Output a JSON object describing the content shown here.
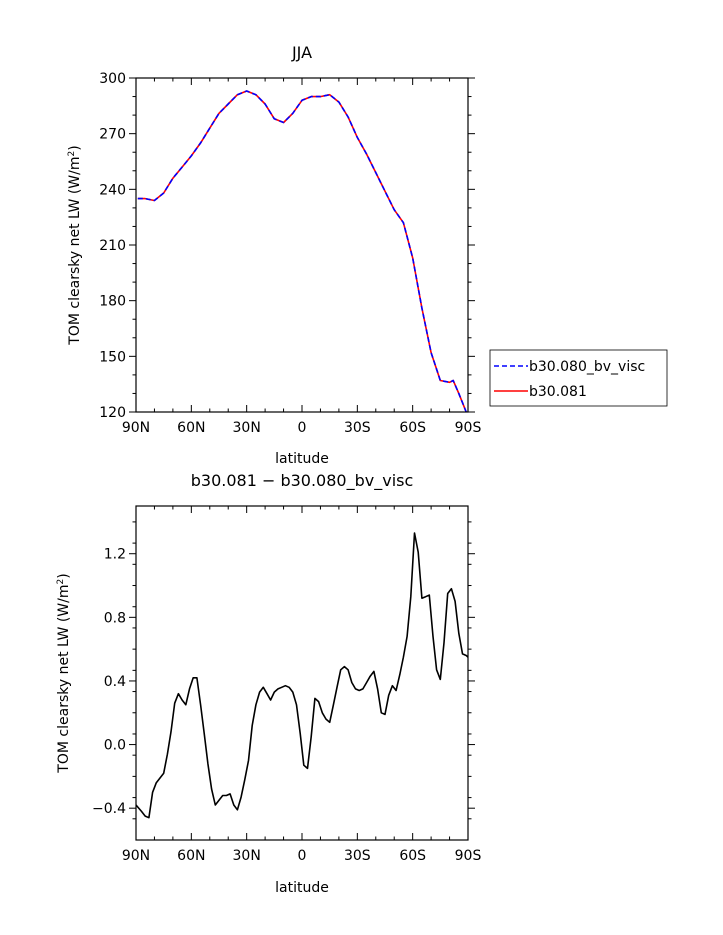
{
  "chart_data": [
    {
      "type": "line",
      "title": "JJA",
      "xlabel": "latitude",
      "ylabel": "TOM clearsky net LW (W/m²)",
      "ylabel_main": "TOM clearsky net LW (W/m",
      "ylabel_sup": "2",
      "ylabel_end": ")",
      "xlim": [
        -90,
        90
      ],
      "ylim": [
        120,
        300
      ],
      "x_ticks": [
        -90,
        -60,
        -30,
        0,
        30,
        60,
        90
      ],
      "x_tick_labels": [
        "90N",
        "60N",
        "30N",
        "0",
        "30S",
        "60S",
        "90S"
      ],
      "y_ticks": [
        120,
        150,
        180,
        210,
        240,
        270,
        300
      ],
      "y_tick_labels": [
        "120",
        "150",
        "180",
        "210",
        "240",
        "270",
        "300"
      ],
      "legend": {
        "placement": "right"
      },
      "series": [
        {
          "name": "b30.080_bv_visc",
          "color": "#0000ff",
          "dash": "dashed",
          "x": [
            -89,
            -85,
            -80,
            -75,
            -70,
            -65,
            -60,
            -55,
            -50,
            -45,
            -40,
            -35,
            -30,
            -25,
            -20,
            -15,
            -10,
            -5,
            0,
            5,
            10,
            15,
            20,
            25,
            30,
            35,
            40,
            45,
            50,
            55,
            60,
            65,
            70,
            75,
            80,
            82,
            85,
            89
          ],
          "y": [
            235,
            235,
            234,
            238,
            246,
            252,
            258,
            265,
            273,
            281,
            286,
            291,
            293,
            291,
            286,
            278,
            276,
            281,
            288,
            290,
            290,
            291,
            287,
            279,
            268,
            259,
            249,
            239,
            229,
            222,
            203,
            176,
            152,
            137,
            136,
            137,
            130,
            120
          ]
        },
        {
          "name": "b30.081",
          "color": "#ff0000",
          "dash": "solid",
          "x": [
            -89,
            -85,
            -80,
            -75,
            -70,
            -65,
            -60,
            -55,
            -50,
            -45,
            -40,
            -35,
            -30,
            -25,
            -20,
            -15,
            -10,
            -5,
            0,
            5,
            10,
            15,
            20,
            25,
            30,
            35,
            40,
            45,
            50,
            55,
            60,
            65,
            70,
            75,
            80,
            82,
            85,
            89
          ],
          "y": [
            235,
            235,
            234,
            238,
            246,
            252,
            258,
            265,
            273,
            281,
            286,
            291,
            293,
            291,
            286,
            278,
            276,
            281,
            288,
            290,
            290,
            291,
            287,
            279,
            268,
            259,
            249,
            239,
            229,
            222,
            203,
            176,
            152,
            137,
            136,
            137,
            130,
            120
          ]
        }
      ]
    },
    {
      "type": "line",
      "title": "b30.081 − b30.080_bv_visc",
      "xlabel": "latitude",
      "ylabel": "TOM clearsky net LW (W/m²)",
      "ylabel_main": "TOM clearsky net LW (W/m",
      "ylabel_sup": "2",
      "ylabel_end": ")",
      "xlim": [
        -90,
        90
      ],
      "ylim": [
        -0.6,
        1.5
      ],
      "x_ticks": [
        -90,
        -60,
        -30,
        0,
        30,
        60,
        90
      ],
      "x_tick_labels": [
        "90N",
        "60N",
        "30N",
        "0",
        "30S",
        "60S",
        "90S"
      ],
      "y_ticks": [
        -0.4,
        0.0,
        0.4,
        0.8,
        1.2
      ],
      "y_tick_labels": [
        "−0.4",
        "0.0",
        "0.4",
        "0.8",
        "1.2"
      ],
      "series": [
        {
          "name": "b30.081 − b30.080_bv_visc",
          "color": "#000000",
          "dash": "solid",
          "x": [
            -90,
            -87,
            -85,
            -83,
            -81,
            -79,
            -77,
            -75,
            -73,
            -71,
            -69,
            -67,
            -65,
            -63,
            -61,
            -59,
            -57,
            -55,
            -53,
            -51,
            -49,
            -47,
            -45,
            -43,
            -41,
            -39,
            -37,
            -35,
            -33,
            -31,
            -29,
            -27,
            -25,
            -23,
            -21,
            -19,
            -17,
            -15,
            -13,
            -11,
            -9,
            -7,
            -5,
            -3,
            -1,
            1,
            3,
            5,
            7,
            9,
            11,
            13,
            15,
            17,
            19,
            21,
            23,
            25,
            27,
            29,
            31,
            33,
            35,
            37,
            39,
            41,
            43,
            45,
            47,
            49,
            51,
            53,
            55,
            57,
            59,
            61,
            63,
            65,
            67,
            69,
            71,
            73,
            75,
            77,
            79,
            81,
            83,
            85,
            87,
            89,
            90
          ],
          "y": [
            -0.38,
            -0.42,
            -0.45,
            -0.46,
            -0.3,
            -0.24,
            -0.21,
            -0.18,
            -0.06,
            0.08,
            0.26,
            0.32,
            0.28,
            0.25,
            0.35,
            0.42,
            0.42,
            0.25,
            0.07,
            -0.12,
            -0.28,
            -0.38,
            -0.35,
            -0.32,
            -0.32,
            -0.31,
            -0.38,
            -0.41,
            -0.33,
            -0.22,
            -0.1,
            0.12,
            0.25,
            0.33,
            0.36,
            0.32,
            0.28,
            0.33,
            0.35,
            0.36,
            0.37,
            0.36,
            0.33,
            0.25,
            0.07,
            -0.13,
            -0.15,
            0.05,
            0.29,
            0.27,
            0.2,
            0.16,
            0.14,
            0.25,
            0.36,
            0.47,
            0.49,
            0.47,
            0.39,
            0.35,
            0.34,
            0.35,
            0.39,
            0.43,
            0.46,
            0.35,
            0.2,
            0.19,
            0.31,
            0.37,
            0.34,
            0.44,
            0.55,
            0.68,
            0.93,
            1.33,
            1.21,
            0.92,
            0.93,
            0.94,
            0.68,
            0.47,
            0.41,
            0.64,
            0.95,
            0.98,
            0.9,
            0.7,
            0.57,
            0.56,
            0.55
          ]
        }
      ]
    }
  ]
}
